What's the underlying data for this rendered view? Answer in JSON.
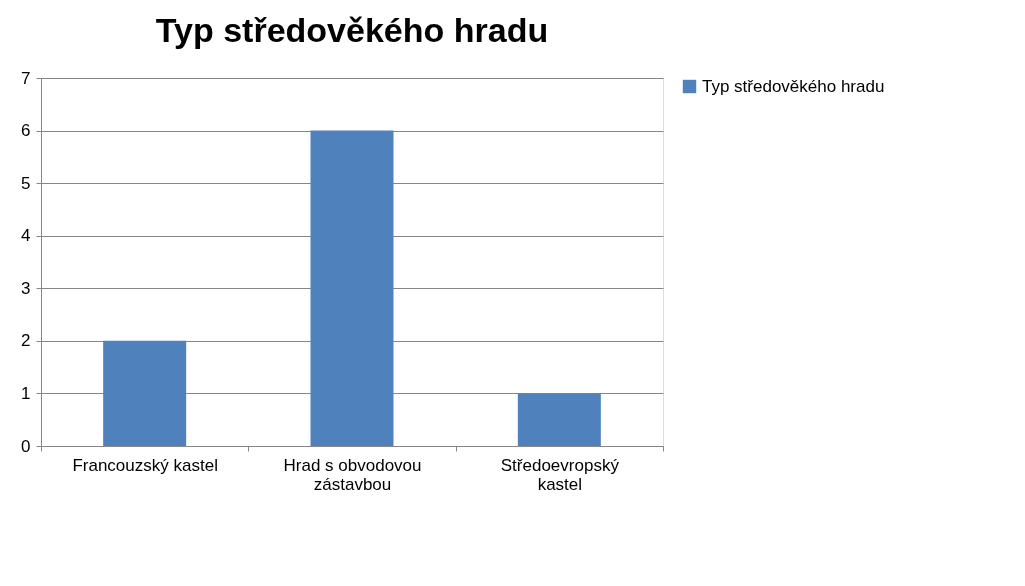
{
  "chart_data": {
    "type": "bar",
    "title": "Typ středověkého hradu",
    "categories": [
      "Francouzský kastel",
      "Hrad s obvodovou zástavbou",
      "Středoevropský kastel"
    ],
    "series": [
      {
        "name": "Typ středověkého hradu",
        "color": "#4f81bd",
        "values": [
          2,
          6,
          1
        ]
      }
    ],
    "ylim": [
      0,
      7
    ],
    "yticks": [
      0,
      1,
      2,
      3,
      4,
      5,
      6,
      7
    ],
    "grid": "y",
    "legend": "right"
  }
}
